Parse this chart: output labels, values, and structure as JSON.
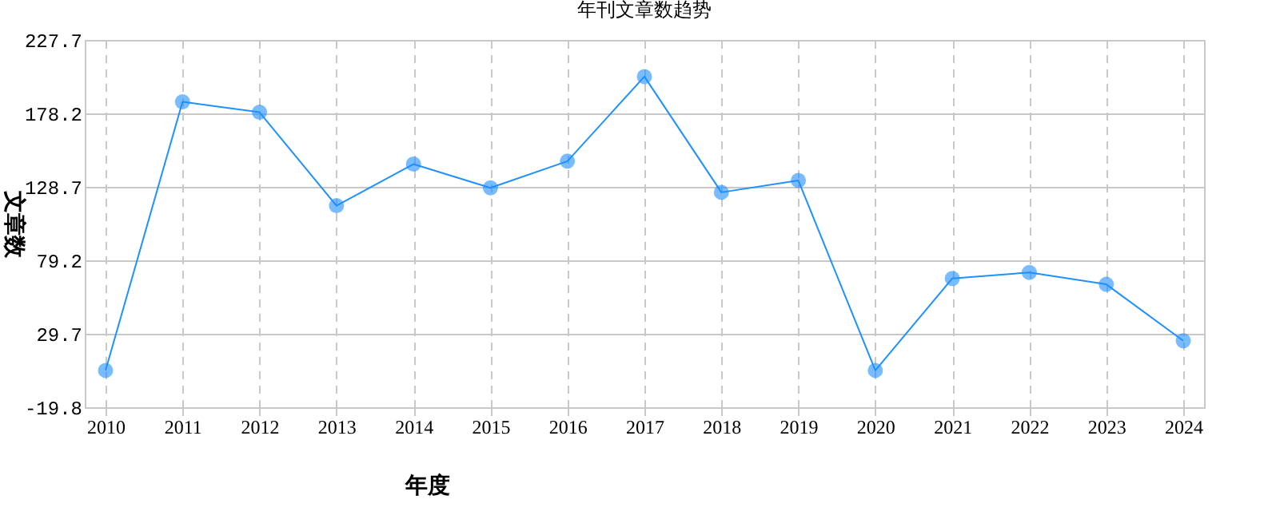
{
  "chart_data": {
    "type": "line",
    "title": "年刊文章数趋势",
    "xlabel": "年度",
    "ylabel": "文章数",
    "categories": [
      "2010",
      "2011",
      "2012",
      "2013",
      "2014",
      "2015",
      "2016",
      "2017",
      "2018",
      "2019",
      "2020",
      "2021",
      "2022",
      "2023",
      "2024"
    ],
    "series": [
      {
        "color": "#1e90ff",
        "values": [
          5,
          186,
          179,
          116,
          144,
          128,
          146,
          203,
          125,
          133,
          5,
          67,
          71,
          63,
          25
        ]
      }
    ],
    "ylim": [
      -19.8,
      227.7
    ],
    "yticks": [
      -19.8,
      29.7,
      79.2,
      128.7,
      178.2,
      227.7
    ],
    "grid": true,
    "marker": "circle",
    "line_style": "solid"
  }
}
